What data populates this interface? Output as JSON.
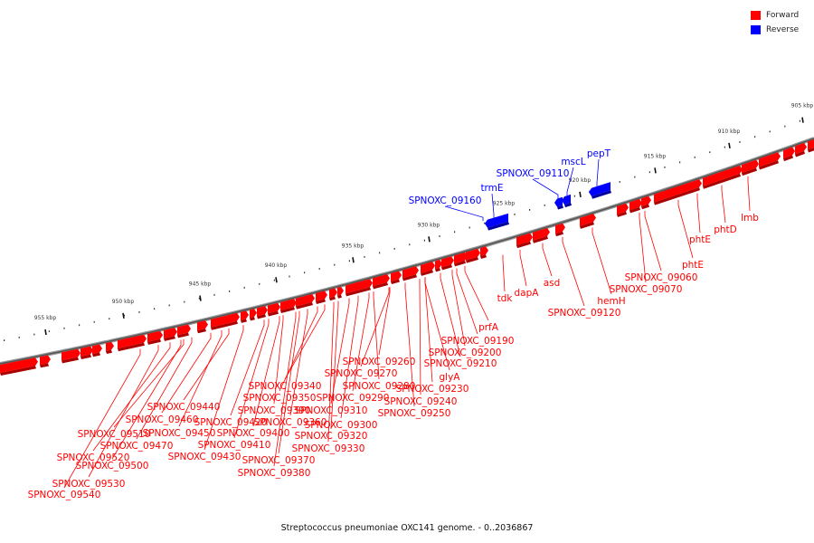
{
  "legend": {
    "forward": {
      "label": "Forward",
      "color": "#ff0000"
    },
    "reverse": {
      "label": "Reverse",
      "color": "#0000ff"
    }
  },
  "caption": "Streptococcus pneumoniae OXC141 genome. - 0..2036867",
  "scale_ticks": [
    "905 kbp",
    "910 kbp",
    "915 kbp",
    "920 kbp",
    "925 kbp",
    "930 kbp",
    "935 kbp",
    "940 kbp",
    "945 kbp",
    "950 kbp",
    "955 kbp"
  ],
  "reverse_labels": [
    "pepT",
    "mscL",
    "SPNOXC_09110",
    "trmE",
    "SPNOXC_09160"
  ],
  "forward_labels": [
    "lmb",
    "phtD",
    "phtE",
    "phtE",
    "SPNOXC_09060",
    "SPNOXC_09070",
    "hemH",
    "SPNOXC_09120",
    "asd",
    "dapA",
    "tdk",
    "prfA",
    "SPNOXC_09190",
    "SPNOXC_09200",
    "SPNOXC_09210",
    "glyA",
    "SPNOXC_09230",
    "SPNOXC_09240",
    "SPNOXC_09250",
    "SPNOXC_09260",
    "SPNOXC_09270",
    "SPNOXC_09280",
    "SPNOXC_09290",
    "SPNOXC_09300",
    "SPNOXC_09310",
    "SPNOXC_09320",
    "SPNOXC_09330",
    "SPNOXC_09340",
    "SPNOXC_09350",
    "SPNOXC_09360",
    "SPNOXC_09370",
    "SPNOXC_09380",
    "SPNOXC_09390",
    "SPNOXC_09400",
    "SPNOXC_09410",
    "SPNOXC_09420",
    "SPNOXC_09430",
    "SPNOXC_09440",
    "SPNOXC_09450",
    "SPNOXC_09460",
    "SPNOXC_09470",
    "SPNOXC_09500",
    "SPNOXC_09510",
    "SPNOXC_09520",
    "SPNOXC_09530",
    "SPNOXC_09540"
  ]
}
